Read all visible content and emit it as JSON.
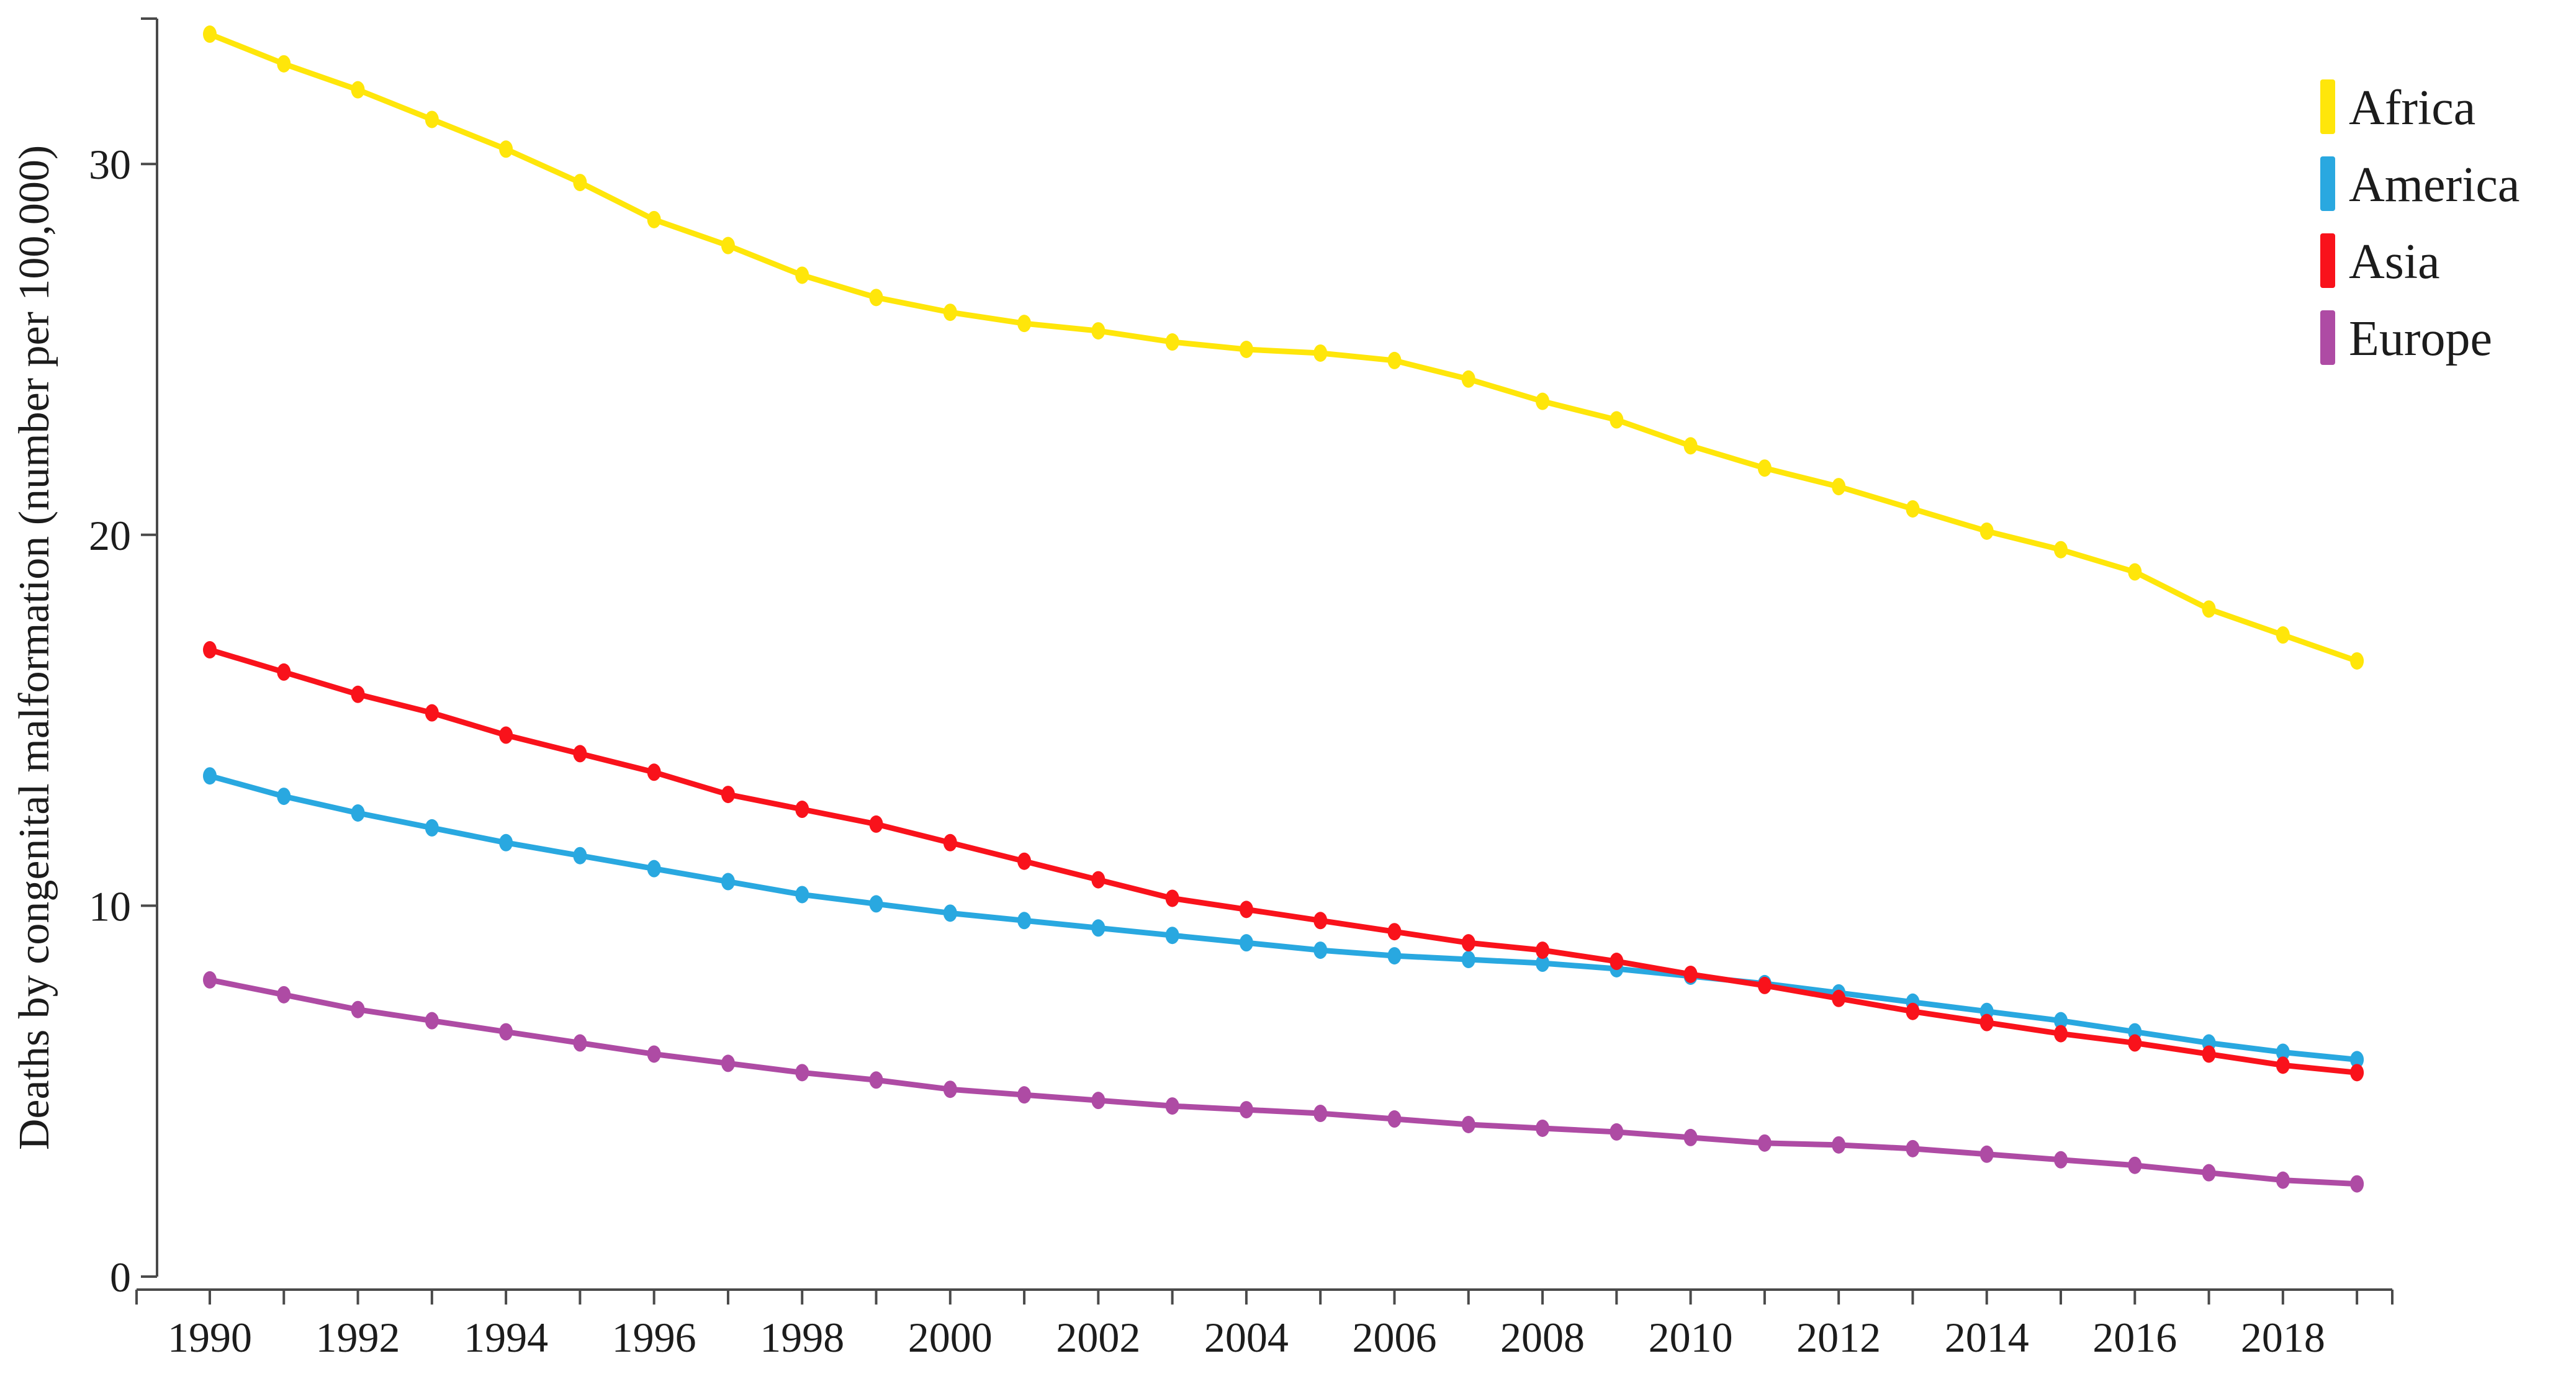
{
  "chart_data": {
    "type": "line",
    "title": "",
    "xlabel": "",
    "ylabel": "Deaths by congenital malformation (number per 100,000)",
    "x": [
      1990,
      1991,
      1992,
      1993,
      1994,
      1995,
      1996,
      1997,
      1998,
      1999,
      2000,
      2001,
      2002,
      2003,
      2004,
      2005,
      2006,
      2007,
      2008,
      2009,
      2010,
      2011,
      2012,
      2013,
      2014,
      2015,
      2016,
      2017,
      2018,
      2019
    ],
    "x_tick_labels": [
      "1990",
      "1992",
      "1994",
      "1996",
      "1998",
      "2000",
      "2002",
      "2004",
      "2006",
      "2008",
      "2010",
      "2012",
      "2014",
      "2016",
      "2018"
    ],
    "y_ticks": [
      0,
      10,
      20,
      30
    ],
    "y_tick_labels": [
      "0",
      "10",
      "20",
      "30"
    ],
    "ylim": [
      0,
      33.9
    ],
    "xlim": [
      1989,
      2019.6
    ],
    "grid": false,
    "marker": "point",
    "legend_position": "top-right",
    "axis_color": "#4a4a4a",
    "text_color": "#1c1c1c",
    "background_color": "#ffffff",
    "series": [
      {
        "name": "Africa",
        "color": "#FFE60A",
        "values": [
          33.5,
          32.7,
          32.0,
          31.2,
          30.4,
          29.5,
          28.5,
          27.8,
          27.0,
          26.4,
          26.0,
          25.7,
          25.5,
          25.2,
          25.0,
          24.9,
          24.7,
          24.2,
          23.6,
          23.1,
          22.4,
          21.8,
          21.3,
          20.7,
          20.1,
          19.6,
          19.0,
          18.0,
          17.3,
          16.6
        ]
      },
      {
        "name": "America",
        "color": "#29A8E0",
        "values": [
          13.5,
          12.95,
          12.5,
          12.1,
          11.7,
          11.35,
          11.0,
          10.65,
          10.3,
          10.05,
          9.8,
          9.6,
          9.4,
          9.2,
          9.0,
          8.8,
          8.65,
          8.55,
          8.45,
          8.3,
          8.1,
          7.9,
          7.65,
          7.4,
          7.15,
          6.9,
          6.6,
          6.3,
          6.05,
          5.85
        ]
      },
      {
        "name": "Asia",
        "color": "#F9121B",
        "values": [
          16.9,
          16.3,
          15.7,
          15.2,
          14.6,
          14.1,
          13.6,
          13.0,
          12.6,
          12.2,
          11.7,
          11.2,
          10.7,
          10.2,
          9.9,
          9.6,
          9.3,
          9.0,
          8.8,
          8.5,
          8.15,
          7.85,
          7.5,
          7.15,
          6.85,
          6.55,
          6.3,
          6.0,
          5.7,
          5.5
        ]
      },
      {
        "name": "Europe",
        "color": "#AE4BA4",
        "values": [
          8.0,
          7.6,
          7.2,
          6.9,
          6.6,
          6.3,
          6.0,
          5.75,
          5.5,
          5.3,
          5.05,
          4.9,
          4.75,
          4.6,
          4.5,
          4.4,
          4.25,
          4.1,
          4.0,
          3.9,
          3.75,
          3.6,
          3.55,
          3.45,
          3.3,
          3.15,
          3.0,
          2.8,
          2.6,
          2.5
        ]
      }
    ],
    "legend": {
      "items": [
        {
          "label": "Africa",
          "color": "#FFE60A"
        },
        {
          "label": "America",
          "color": "#29A8E0"
        },
        {
          "label": "Asia",
          "color": "#F9121B"
        },
        {
          "label": "Europe",
          "color": "#AE4BA4"
        }
      ]
    }
  }
}
